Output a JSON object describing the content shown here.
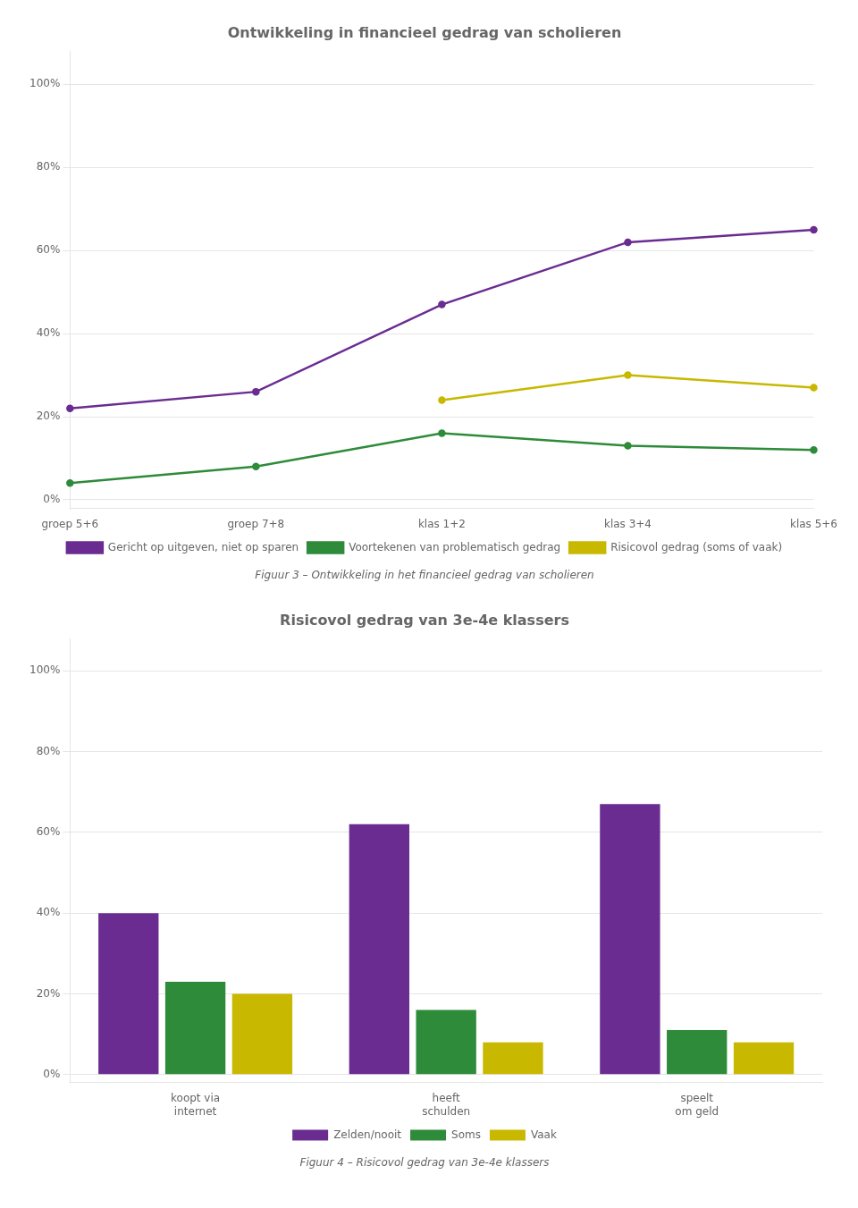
{
  "chart_data": [
    {
      "type": "line",
      "title": "Ontwikkeling in financieel gedrag van scholieren",
      "subtitle": "Figuur 3 – Ontwikkeling in het financieel gedrag van scholieren",
      "categories": [
        "groep 5+6",
        "groep 7+8",
        "klas 1+2",
        "klas 3+4",
        "klas 5+6"
      ],
      "series": [
        {
          "name": "Gericht op uitgeven, niet op sparen",
          "color": "#6B2C91",
          "values": [
            22,
            26,
            47,
            62,
            65
          ]
        },
        {
          "name": "Voortekenen van problematisch gedrag",
          "color": "#2E8B3A",
          "values": [
            4,
            8,
            16,
            13,
            12
          ]
        },
        {
          "name": "Risicovol gedrag (soms of vaak)",
          "color": "#C8B800",
          "values": [
            null,
            null,
            24,
            30,
            27
          ]
        }
      ],
      "ylim": [
        -2,
        108
      ],
      "yticks": [
        {
          "value": 0,
          "label": "0%"
        },
        {
          "value": 20,
          "label": "20%"
        },
        {
          "value": 40,
          "label": "40%"
        },
        {
          "value": 60,
          "label": "60%"
        },
        {
          "value": 80,
          "label": "80%"
        },
        {
          "value": 100,
          "label": "100%"
        }
      ],
      "grid": true,
      "legend": "bottom"
    },
    {
      "type": "bar",
      "title": "Risicovol gedrag van 3e-4e klassers",
      "subtitle": "Figuur 4 – Risicovol gedrag van 3e-4e klassers",
      "categories": [
        "koopt via\ninternet",
        "heeft\nschulden",
        "speelt\nom geld"
      ],
      "series": [
        {
          "name": "Zelden/nooit",
          "color": "#6B2C91",
          "values": [
            40,
            62,
            67
          ]
        },
        {
          "name": "Soms",
          "color": "#2E8B3A",
          "values": [
            23,
            16,
            11
          ]
        },
        {
          "name": "Vaak",
          "color": "#C8B800",
          "values": [
            20,
            8,
            8
          ]
        }
      ],
      "ylim": [
        -2,
        108
      ],
      "yticks": [
        {
          "value": 0,
          "label": "0%"
        },
        {
          "value": 20,
          "label": "20%"
        },
        {
          "value": 40,
          "label": "40%"
        },
        {
          "value": 60,
          "label": "60%"
        },
        {
          "value": 80,
          "label": "80%"
        },
        {
          "value": 100,
          "label": "100%"
        }
      ],
      "grid": true,
      "legend": "bottom"
    }
  ]
}
